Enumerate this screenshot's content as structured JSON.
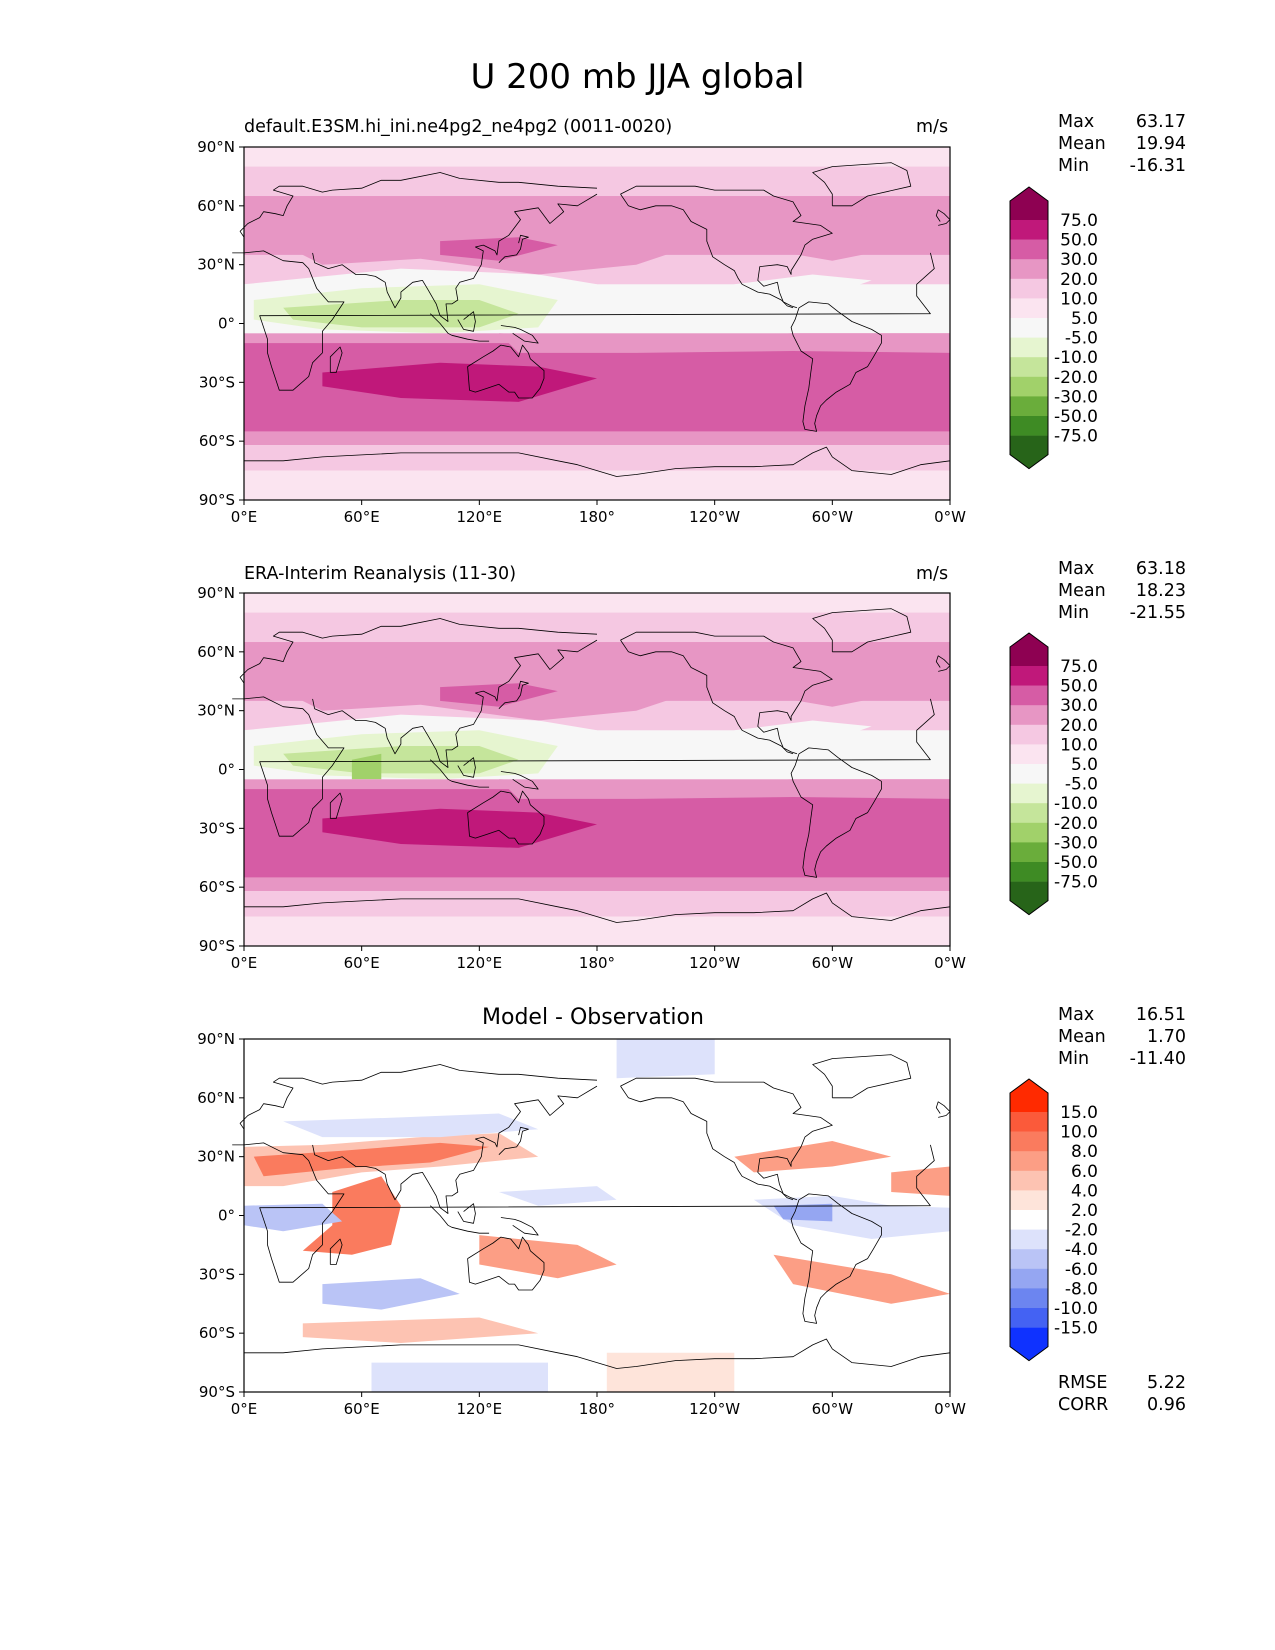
{
  "title": "U 200 mb JJA global",
  "panels": [
    {
      "subtitle": "default.E3SM.hi_ini.ne4pg2_ne4pg2 (0011-0020)",
      "units": "m/s",
      "stats": {
        "max_label": "Max",
        "max": "63.17",
        "mean_label": "Mean",
        "mean": "19.94",
        "min_label": "Min",
        "min": "-16.31"
      },
      "colorbar_labels": [
        "75.0",
        "50.0",
        "30.0",
        "20.0",
        "10.0",
        "5.0",
        "-5.0",
        "-10.0",
        "-20.0",
        "-30.0",
        "-50.0",
        "-75.0"
      ],
      "colorbar_colors": [
        "#8e0152",
        "#c0187a",
        "#d65ca5",
        "#e796c4",
        "#f5c8e2",
        "#fbe4f0",
        "#f7f7f7",
        "#e6f5d0",
        "#c5e59b",
        "#a1d16a",
        "#6aad3b",
        "#3e8b24",
        "#276419"
      ]
    },
    {
      "subtitle": "ERA-Interim Reanalysis (11-30)",
      "units": "m/s",
      "stats": {
        "max_label": "Max",
        "max": "63.18",
        "mean_label": "Mean",
        "mean": "18.23",
        "min_label": "Min",
        "min": "-21.55"
      },
      "colorbar_labels": [
        "75.0",
        "50.0",
        "30.0",
        "20.0",
        "10.0",
        "5.0",
        "-5.0",
        "-10.0",
        "-20.0",
        "-30.0",
        "-50.0",
        "-75.0"
      ],
      "colorbar_colors": [
        "#8e0152",
        "#c0187a",
        "#d65ca5",
        "#e796c4",
        "#f5c8e2",
        "#fbe4f0",
        "#f7f7f7",
        "#e6f5d0",
        "#c5e59b",
        "#a1d16a",
        "#6aad3b",
        "#3e8b24",
        "#276419"
      ]
    },
    {
      "subtitle": "Model - Observation",
      "units": "",
      "stats": {
        "max_label": "Max",
        "max": "16.51",
        "mean_label": "Mean",
        "mean": "1.70",
        "min_label": "Min",
        "min": "-11.40"
      },
      "colorbar_labels": [
        "15.0",
        "10.0",
        "8.0",
        "6.0",
        "4.0",
        "2.0",
        "-2.0",
        "-4.0",
        "-6.0",
        "-8.0",
        "-10.0",
        "-15.0"
      ],
      "colorbar_colors": [
        "#ff2a00",
        "#fb5a3a",
        "#fa7b5e",
        "#fc9e85",
        "#fdc3b2",
        "#fee4da",
        "#ffffff",
        "#dde2fb",
        "#bac4f6",
        "#95a6f2",
        "#6c85f0",
        "#4462f3",
        "#0f32ff"
      ],
      "extra": {
        "rmse_label": "RMSE",
        "rmse": "5.22",
        "corr_label": "CORR",
        "corr": "0.96"
      }
    }
  ],
  "axes": {
    "x_ticks": [
      "0°E",
      "60°E",
      "120°E",
      "180°",
      "120°W",
      "60°W",
      "0°W"
    ],
    "y_ticks": [
      "90°N",
      "60°N",
      "30°N",
      "0°",
      "30°S",
      "60°S",
      "90°S"
    ]
  }
}
